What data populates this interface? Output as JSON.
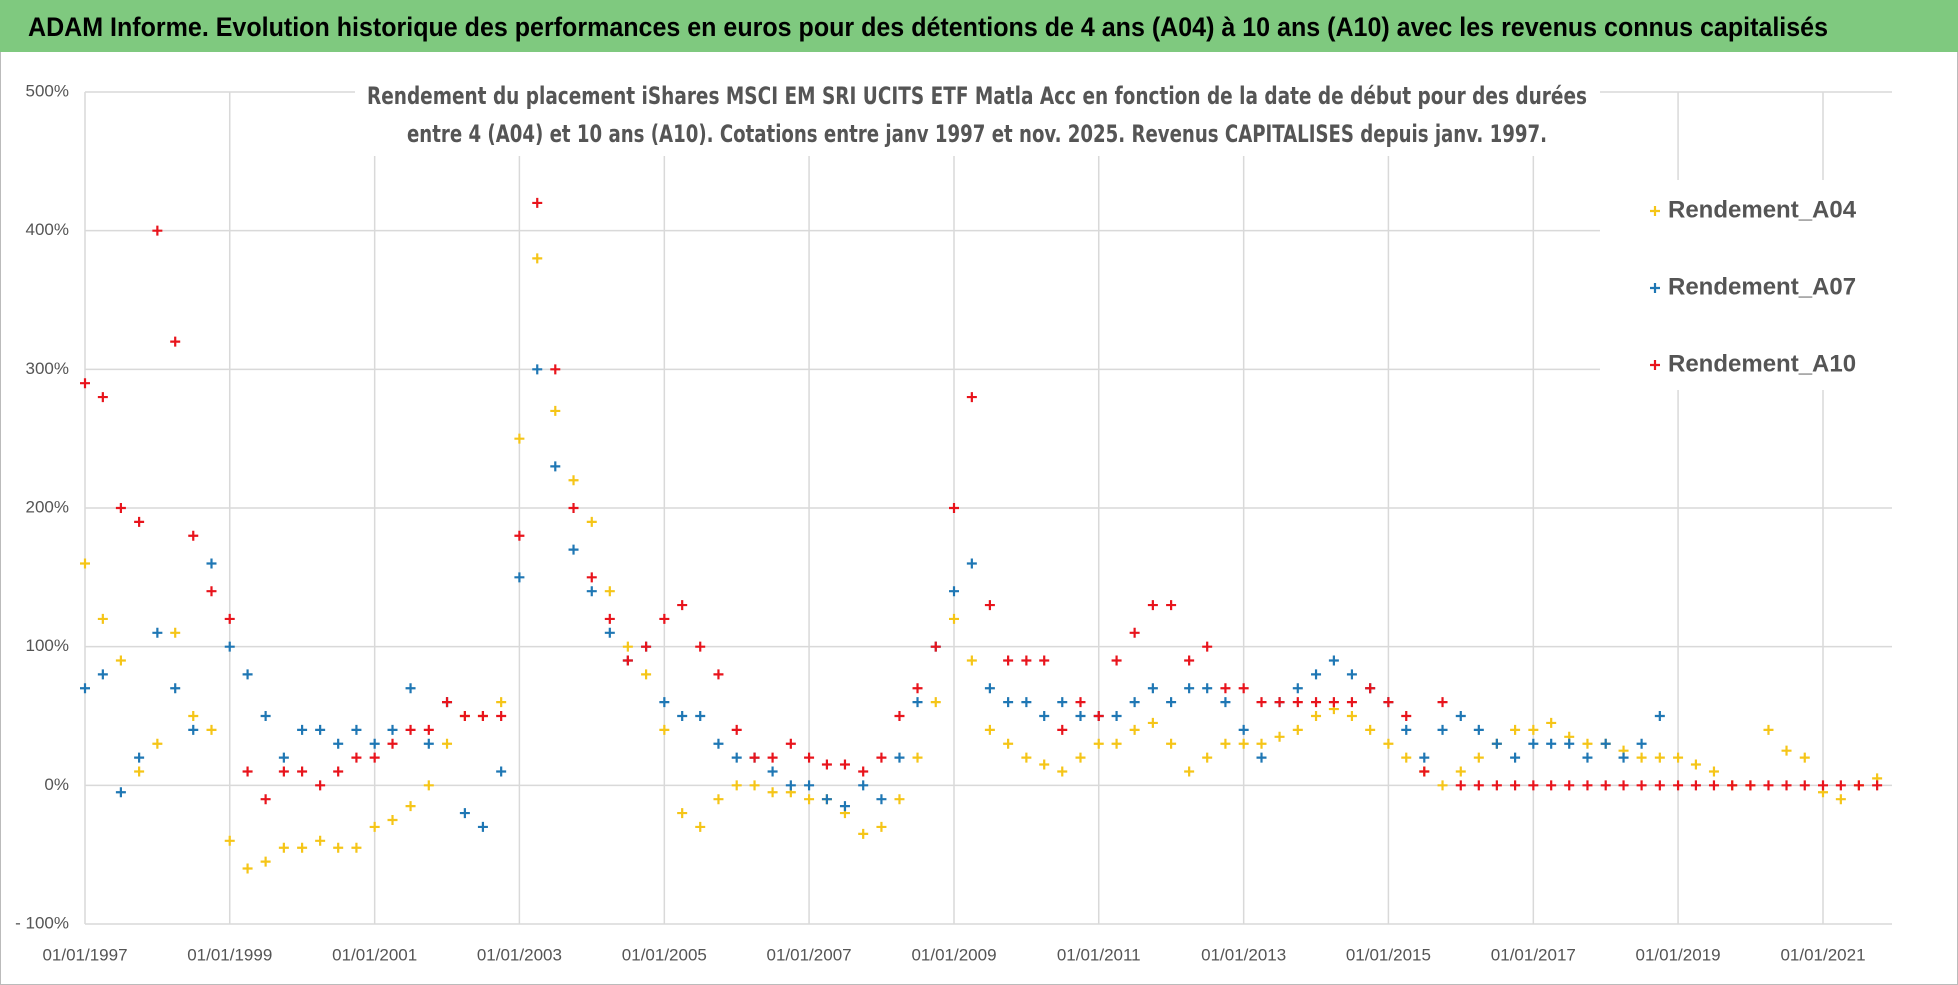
{
  "header": {
    "title": "ADAM Informe. Evolution historique des performances en euros pour des détentions de 4 ans (A04) à 10 ans (A10) avec les revenus connus capitalisés"
  },
  "chart_data": {
    "type": "scatter",
    "title": [
      "Rendement du placement iShares MSCI EM SRI UCITS ETF Matla Acc en fonction de la date de début pour des durées",
      "entre 4 (A04) et 10 ans (A10).  Cotations entre janv 1997 et nov. 2025. Revenus CAPITALISES depuis janv. 1997."
    ],
    "x": [
      "1997-01-01",
      "1997-04-01",
      "1997-07-01",
      "1997-10-01",
      "1998-01-01",
      "1998-04-01",
      "1998-07-01",
      "1998-10-01",
      "1999-01-01",
      "1999-04-01",
      "1999-07-01",
      "1999-10-01",
      "2000-01-01",
      "2000-04-01",
      "2000-07-01",
      "2000-10-01",
      "2001-01-01",
      "2001-04-01",
      "2001-07-01",
      "2001-10-01",
      "2002-01-01",
      "2002-04-01",
      "2002-07-01",
      "2002-10-01",
      "2003-01-01",
      "2003-04-01",
      "2003-07-01",
      "2003-10-01",
      "2004-01-01",
      "2004-04-01",
      "2004-07-01",
      "2004-10-01",
      "2005-01-01",
      "2005-04-01",
      "2005-07-01",
      "2005-10-01",
      "2006-01-01",
      "2006-04-01",
      "2006-07-01",
      "2006-10-01",
      "2007-01-01",
      "2007-04-01",
      "2007-07-01",
      "2007-10-01",
      "2008-01-01",
      "2008-04-01",
      "2008-07-01",
      "2008-10-01",
      "2009-01-01",
      "2009-04-01",
      "2009-07-01",
      "2009-10-01",
      "2010-01-01",
      "2010-04-01",
      "2010-07-01",
      "2010-10-01",
      "2011-01-01",
      "2011-04-01",
      "2011-07-01",
      "2011-10-01",
      "2012-01-01",
      "2012-04-01",
      "2012-07-01",
      "2012-10-01",
      "2013-01-01",
      "2013-04-01",
      "2013-07-01",
      "2013-10-01",
      "2014-01-01",
      "2014-04-01",
      "2014-07-01",
      "2014-10-01",
      "2015-01-01",
      "2015-04-01",
      "2015-07-01",
      "2015-10-01",
      "2016-01-01",
      "2016-04-01",
      "2016-07-01",
      "2016-10-01",
      "2017-01-01",
      "2017-04-01",
      "2017-07-01",
      "2017-10-01",
      "2018-01-01",
      "2018-04-01",
      "2018-07-01",
      "2018-10-01",
      "2019-01-01",
      "2019-04-01",
      "2019-07-01",
      "2019-10-01",
      "2020-01-01",
      "2020-04-01",
      "2020-07-01",
      "2020-10-01",
      "2021-01-01",
      "2021-04-01",
      "2021-07-01",
      "2021-10-01"
    ],
    "series": [
      {
        "name": "Rendement_A04",
        "color": "#f5c518",
        "values": [
          160,
          120,
          90,
          10,
          30,
          110,
          50,
          40,
          -40,
          -60,
          -55,
          -45,
          -45,
          -40,
          -45,
          -45,
          -30,
          -25,
          -15,
          0,
          30,
          50,
          50,
          60,
          250,
          380,
          270,
          220,
          190,
          140,
          100,
          80,
          40,
          -20,
          -30,
          -10,
          0,
          0,
          -5,
          -5,
          -10,
          -10,
          -20,
          -35,
          -30,
          -10,
          20,
          60,
          120,
          90,
          40,
          30,
          20,
          15,
          10,
          20,
          30,
          30,
          40,
          45,
          30,
          10,
          20,
          30,
          30,
          30,
          35,
          40,
          50,
          55,
          50,
          40,
          30,
          20,
          10,
          0,
          10,
          20,
          30,
          40,
          40,
          45,
          35,
          30,
          30,
          25,
          20,
          20,
          20,
          15,
          10,
          0,
          0,
          40,
          25,
          20,
          -5,
          -10,
          0,
          5
        ]
      },
      {
        "name": "Rendement_A07",
        "color": "#1f77b4",
        "values": [
          70,
          80,
          -5,
          20,
          110,
          70,
          40,
          160,
          100,
          80,
          50,
          20,
          40,
          40,
          30,
          40,
          30,
          40,
          70,
          30,
          60,
          -20,
          -30,
          10,
          150,
          300,
          230,
          170,
          140,
          110,
          90,
          100,
          60,
          50,
          50,
          30,
          20,
          20,
          10,
          0,
          0,
          -10,
          -15,
          0,
          -10,
          20,
          60,
          100,
          140,
          160,
          70,
          60,
          60,
          50,
          60,
          50,
          50,
          50,
          60,
          70,
          60,
          70,
          70,
          60,
          40,
          20,
          60,
          70,
          80,
          90,
          80,
          70,
          60,
          40,
          20,
          40,
          50,
          40,
          30,
          20,
          30,
          30,
          30,
          20,
          30,
          20,
          30,
          50,
          null,
          null,
          null,
          null,
          null,
          null,
          null,
          null,
          null,
          null,
          null,
          null
        ]
      },
      {
        "name": "Rendement_A10",
        "color": "#e8141c",
        "values": [
          290,
          280,
          200,
          190,
          400,
          320,
          180,
          140,
          120,
          10,
          -10,
          10,
          10,
          0,
          10,
          20,
          20,
          30,
          40,
          40,
          60,
          50,
          50,
          50,
          180,
          420,
          300,
          200,
          150,
          120,
          90,
          100,
          120,
          130,
          100,
          80,
          40,
          20,
          20,
          30,
          20,
          15,
          15,
          10,
          20,
          50,
          70,
          100,
          200,
          280,
          130,
          90,
          90,
          90,
          40,
          60,
          50,
          90,
          110,
          130,
          130,
          90,
          100,
          70,
          70,
          60,
          60,
          60,
          60,
          60,
          60,
          70,
          60,
          50,
          10,
          60,
          0,
          0,
          0,
          0,
          0,
          0,
          0,
          0,
          0,
          0,
          0,
          0,
          0,
          0,
          0,
          0,
          0,
          0,
          0,
          0,
          0,
          0,
          0,
          0
        ]
      }
    ],
    "xlim": [
      "1997-01-01",
      "2021-12-15"
    ],
    "xticks": [
      {
        "value": "1997-01-01",
        "label": "01/01/1997"
      },
      {
        "value": "1999-01-01",
        "label": "01/01/1999"
      },
      {
        "value": "2001-01-01",
        "label": "01/01/2001"
      },
      {
        "value": "2003-01-01",
        "label": "01/01/2003"
      },
      {
        "value": "2005-01-01",
        "label": "01/01/2005"
      },
      {
        "value": "2007-01-01",
        "label": "01/01/2007"
      },
      {
        "value": "2009-01-01",
        "label": "01/01/2009"
      },
      {
        "value": "2011-01-01",
        "label": "01/01/2011"
      },
      {
        "value": "2013-01-01",
        "label": "01/01/2013"
      },
      {
        "value": "2015-01-01",
        "label": "01/01/2015"
      },
      {
        "value": "2017-01-01",
        "label": "01/01/2017"
      },
      {
        "value": "2019-01-01",
        "label": "01/01/2019"
      },
      {
        "value": "2021-01-01",
        "label": "01/01/2021"
      }
    ],
    "ylim": [
      -100,
      500
    ],
    "yticks": [
      {
        "value": -100,
        "label": "- 100%"
      },
      {
        "value": 0,
        "label": "0%"
      },
      {
        "value": 100,
        "label": "100%"
      },
      {
        "value": 200,
        "label": "200%"
      },
      {
        "value": 300,
        "label": "300%"
      },
      {
        "value": 400,
        "label": "400%"
      },
      {
        "value": 500,
        "label": "500%"
      }
    ],
    "grid": true,
    "legend": "upper right"
  }
}
